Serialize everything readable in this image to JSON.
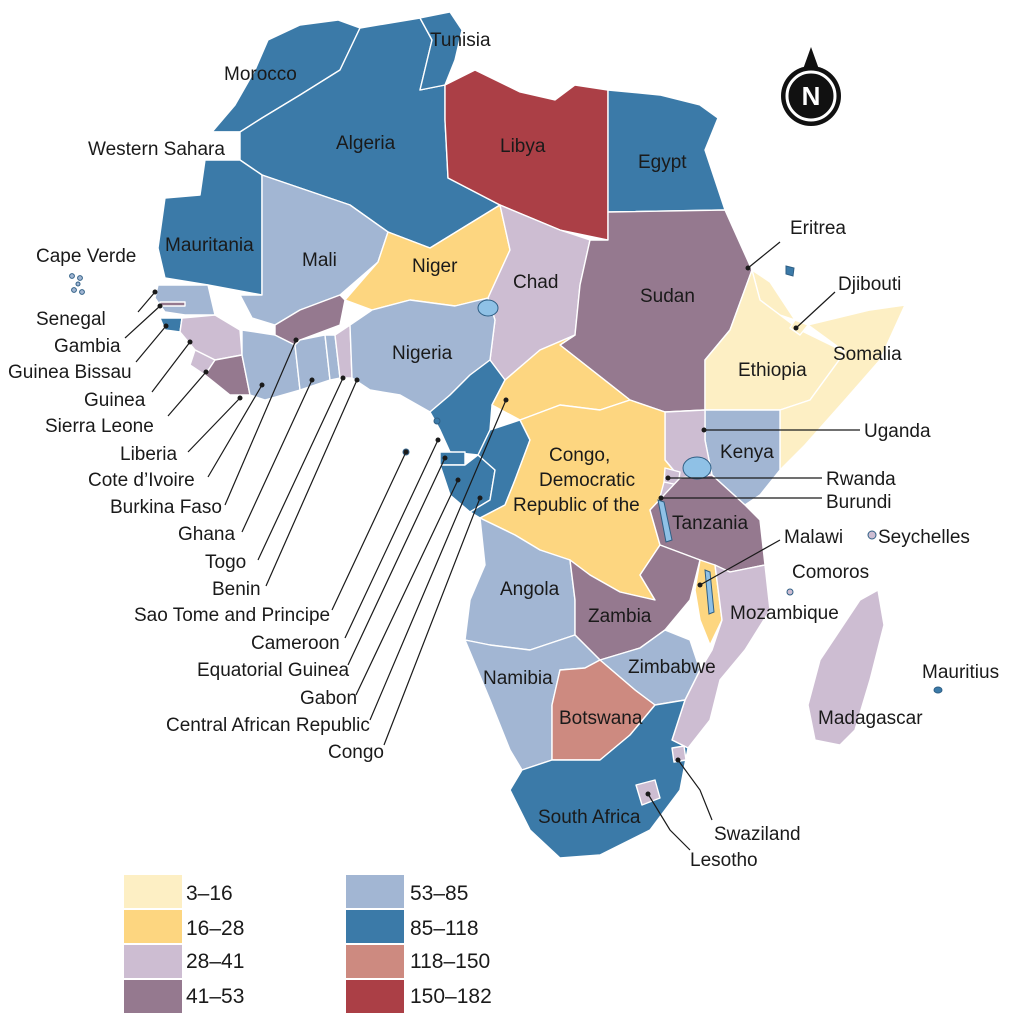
{
  "colors": {
    "c1": "#fdefc4",
    "c2": "#fdd680",
    "c3": "#cdbdd2",
    "c4": "#95798f",
    "c5": "#a2b6d3",
    "c6": "#3b7aa8",
    "c7": "#cd8a80",
    "c8": "#ab3f46",
    "none": "#ffffff",
    "outline": "#30526e"
  },
  "compass": {
    "letter": "N"
  },
  "legend": [
    {
      "label": "3–16",
      "color": "#fdefc4"
    },
    {
      "label": "16–28",
      "color": "#fdd680"
    },
    {
      "label": "28–41",
      "color": "#cdbdd2"
    },
    {
      "label": "41–53",
      "color": "#95798f"
    },
    {
      "label": "53–85",
      "color": "#a2b6d3"
    },
    {
      "label": "85–118",
      "color": "#3b7aa8"
    },
    {
      "label": "118–150",
      "color": "#cd8a80"
    },
    {
      "label": "150–182",
      "color": "#ab3f46"
    }
  ],
  "labels": {
    "tunisia": "Tunisia",
    "morocco": "Morocco",
    "algeria": "Algeria",
    "libya": "Libya",
    "egypt": "Egypt",
    "western_sahara": "Western Sahara",
    "mauritania": "Mauritania",
    "mali": "Mali",
    "niger": "Niger",
    "chad": "Chad",
    "sudan": "Sudan",
    "eritrea": "Eritrea",
    "djibouti": "Djibouti",
    "somalia": "Somalia",
    "ethiopia": "Ethiopia",
    "cape_verde": "Cape Verde",
    "senegal": "Senegal",
    "gambia": "Gambia",
    "guinea_bissau": "Guinea Bissau",
    "guinea": "Guinea",
    "sierra_leone": "Sierra Leone",
    "liberia": "Liberia",
    "cote_divoire": "Cote d’Ivoire",
    "burkina_faso": "Burkina Faso",
    "ghana": "Ghana",
    "togo": "Togo",
    "benin": "Benin",
    "sao_tome": "Sao Tome and Principe",
    "cameroon": "Cameroon",
    "equatorial_guinea": "Equatorial Guinea",
    "gabon": "Gabon",
    "car": "Central African Republic",
    "congo": "Congo",
    "nigeria": "Nigeria",
    "drc_1": "Congo,",
    "drc_2": "Democratic",
    "drc_3": "Republic of the",
    "uganda": "Uganda",
    "kenya": "Kenya",
    "rwanda": "Rwanda",
    "burundi": "Burundi",
    "tanzania": "Tanzania",
    "malawi": "Malawi",
    "seychelles": "Seychelles",
    "comoros": "Comoros",
    "angola": "Angola",
    "zambia": "Zambia",
    "mozambique": "Mozambique",
    "mauritius": "Mauritius",
    "namibia": "Namibia",
    "zimbabwe": "Zimbabwe",
    "botswana": "Botswana",
    "madagascar": "Madagascar",
    "south_africa": "South Africa",
    "swaziland": "Swaziland",
    "lesotho": "Lesotho"
  }
}
